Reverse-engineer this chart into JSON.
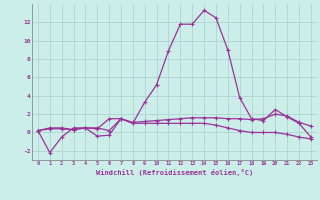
{
  "xlabel": "Windchill (Refroidissement éolien,°C)",
  "background_color": "#cceee8",
  "grid_color": "#aacccc",
  "line_color": "#993399",
  "x_hours": [
    0,
    1,
    2,
    3,
    4,
    5,
    6,
    7,
    8,
    9,
    10,
    11,
    12,
    13,
    14,
    15,
    16,
    17,
    18,
    19,
    20,
    21,
    22,
    23
  ],
  "series1": [
    0.2,
    -2.2,
    -0.5,
    0.5,
    0.5,
    -0.4,
    -0.3,
    1.5,
    1.0,
    3.3,
    5.2,
    8.9,
    11.8,
    11.8,
    13.3,
    12.5,
    9.0,
    3.8,
    1.5,
    1.3,
    2.5,
    1.7,
    1.0,
    -0.5
  ],
  "series2": [
    0.2,
    0.5,
    0.5,
    0.3,
    0.5,
    0.5,
    0.2,
    1.5,
    1.1,
    1.2,
    1.3,
    1.4,
    1.5,
    1.6,
    1.6,
    1.6,
    1.5,
    1.5,
    1.4,
    1.5,
    2.0,
    1.8,
    1.1,
    0.7
  ],
  "series3": [
    0.2,
    0.4,
    0.4,
    0.3,
    0.5,
    0.4,
    1.5,
    1.5,
    1.0,
    1.0,
    1.0,
    1.0,
    1.0,
    1.0,
    1.0,
    0.8,
    0.5,
    0.2,
    0.0,
    0.0,
    0.0,
    -0.2,
    -0.5,
    -0.7
  ],
  "ylim": [
    -3,
    14
  ],
  "yticks": [
    -2,
    0,
    2,
    4,
    6,
    8,
    10,
    12
  ],
  "xticks": [
    0,
    1,
    2,
    3,
    4,
    5,
    6,
    7,
    8,
    9,
    10,
    11,
    12,
    13,
    14,
    15,
    16,
    17,
    18,
    19,
    20,
    21,
    22,
    23
  ]
}
